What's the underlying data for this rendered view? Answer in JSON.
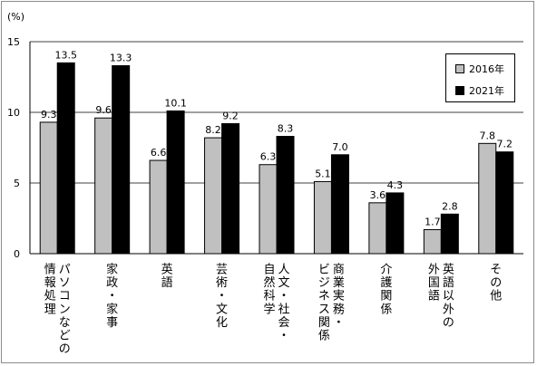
{
  "chart_data": {
    "type": "bar",
    "ylabel": "(%)",
    "ylim": [
      0,
      15
    ],
    "yticks": [
      0,
      5,
      10,
      15
    ],
    "grid": true,
    "legend_position": "top-right",
    "categories": [
      "パソコンなどの\n情報処理",
      "家政・家事",
      "英語",
      "芸術・文化",
      "人文・社会・\n自然科学",
      "商業実務・\nビジネス関係",
      "介護関係",
      "英語以外の\n外国語",
      "その他"
    ],
    "series": [
      {
        "name": "2016年",
        "color": "#c0c0c0",
        "values": [
          9.3,
          9.6,
          6.6,
          8.2,
          6.3,
          5.1,
          3.6,
          1.7,
          7.8
        ],
        "labels": [
          "9.3",
          "9.6",
          "6.6",
          "8.2",
          "6.3",
          "5.1",
          "3.6",
          "1.7",
          "7.8"
        ]
      },
      {
        "name": "2021年",
        "color": "#000000",
        "values": [
          13.5,
          13.3,
          10.1,
          9.2,
          8.3,
          7.0,
          4.3,
          2.8,
          7.2
        ],
        "labels": [
          "13.5",
          "13.3",
          "10.1",
          "9.2",
          "8.3",
          "7.0",
          "4.3",
          "2.8",
          "7.2"
        ]
      }
    ]
  }
}
